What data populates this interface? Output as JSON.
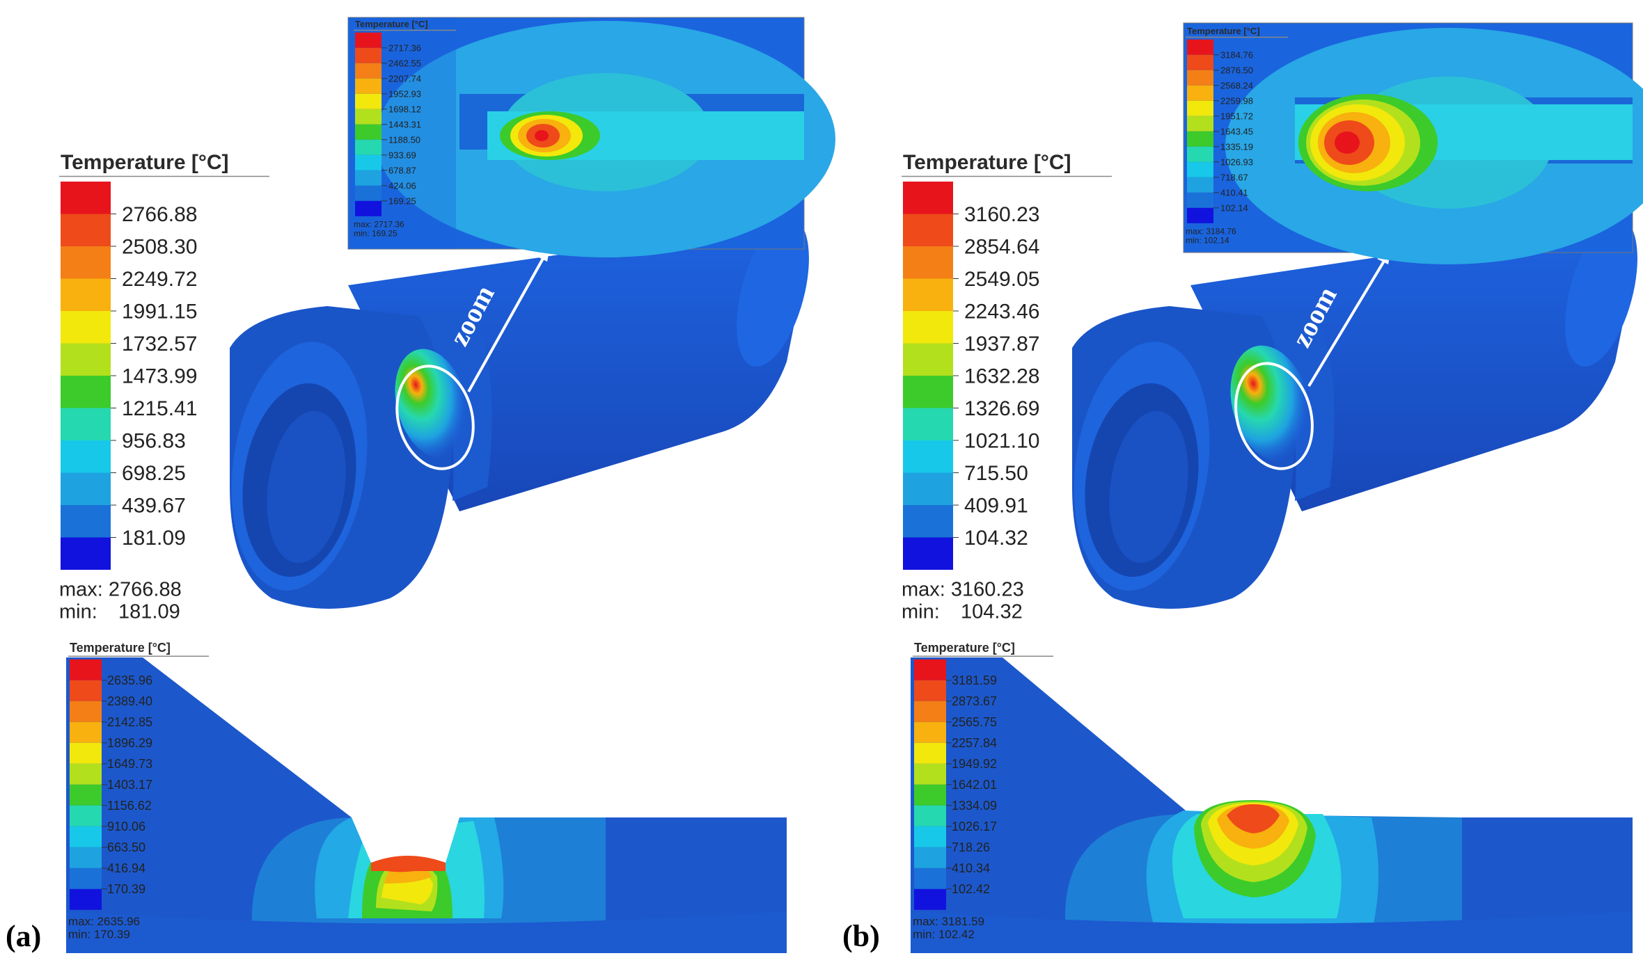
{
  "panels": [
    {
      "id": "a",
      "label": "(a)",
      "zoom_label": "zoom",
      "main_legend": {
        "title": "Temperature [°C]",
        "values": [
          "2766.88",
          "2508.30",
          "2249.72",
          "1991.15",
          "1732.57",
          "1473.99",
          "1215.41",
          "956.83",
          "698.25",
          "439.67",
          "181.09"
        ],
        "max_text": "max: 2766.88",
        "min_label": "min:",
        "min_value": "181.09"
      },
      "zoom_legend": {
        "title": "Temperature [°C]",
        "values": [
          "2717.36",
          "2462.55",
          "2207.74",
          "1952.93",
          "1698.12",
          "1443.31",
          "1188.50",
          "933.69",
          "678.87",
          "424.06",
          "169.25"
        ],
        "max_text": "max: 2717.36",
        "min_text": "min:   169.25"
      },
      "section_legend": {
        "title": "Temperature [°C]",
        "values": [
          "2635.96",
          "2389.40",
          "2142.85",
          "1896.29",
          "1649.73",
          "1403.17",
          "1156.62",
          "910.06",
          "663.50",
          "416.94",
          "170.39"
        ],
        "max_text": "max: 2635.96",
        "min_text": "min:   170.39"
      }
    },
    {
      "id": "b",
      "label": "(b)",
      "zoom_label": "zoom",
      "main_legend": {
        "title": "Temperature [°C]",
        "values": [
          "3160.23",
          "2854.64",
          "2549.05",
          "2243.46",
          "1937.87",
          "1632.28",
          "1326.69",
          "1021.10",
          "715.50",
          "409.91",
          "104.32"
        ],
        "max_text": "max: 3160.23",
        "min_label": "min:",
        "min_value": "104.32"
      },
      "zoom_legend": {
        "title": "Temperature [°C]",
        "values": [
          "3184.76",
          "2876.50",
          "2568.24",
          "2259.98",
          "1951.72",
          "1643.45",
          "1335.19",
          "1026.93",
          "718.67",
          "410.41",
          "102.14"
        ],
        "max_text": "max: 3184.76",
        "min_text": "min:   102.14"
      },
      "section_legend": {
        "title": "Temperature [°C]",
        "values": [
          "3181.59",
          "2873.67",
          "2565.75",
          "2257.84",
          "1949.92",
          "1642.01",
          "1334.09",
          "1026.17",
          "718.26",
          "410.34",
          "102.42"
        ],
        "max_text": "max: 3181.59",
        "min_text": "min:   102.42"
      }
    }
  ],
  "colors": {
    "scale": [
      "#e8141c",
      "#ee4a1a",
      "#f47f16",
      "#f8b10e",
      "#f2e80c",
      "#b3e01c",
      "#3ccb2a",
      "#26d8b0",
      "#18c8e8",
      "#1ea3e0",
      "#1a72d8",
      "#1212de"
    ],
    "part_blue": "#1e5fd8",
    "part_dark": "#1546b0"
  }
}
